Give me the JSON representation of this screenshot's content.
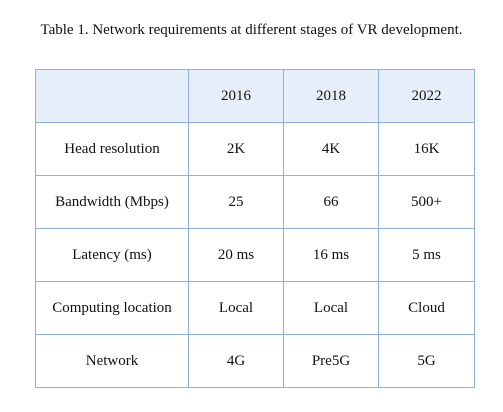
{
  "caption": "Table 1. Network requirements at different stages of VR development.",
  "table": {
    "header": [
      "",
      "2016",
      "2018",
      "2022"
    ],
    "rows": [
      [
        "Head resolution",
        "2K",
        "4K",
        "16K"
      ],
      [
        "Bandwidth (Mbps)",
        "25",
        "66",
        "500+"
      ],
      [
        "Latency (ms)",
        "20 ms",
        "16 ms",
        "5 ms"
      ],
      [
        "Computing location",
        "Local",
        "Local",
        "Cloud"
      ],
      [
        "Network",
        "4G",
        "Pre5G",
        "5G"
      ]
    ],
    "colors": {
      "border": "#8fb0dc",
      "header_background": "#e6eff9"
    }
  }
}
